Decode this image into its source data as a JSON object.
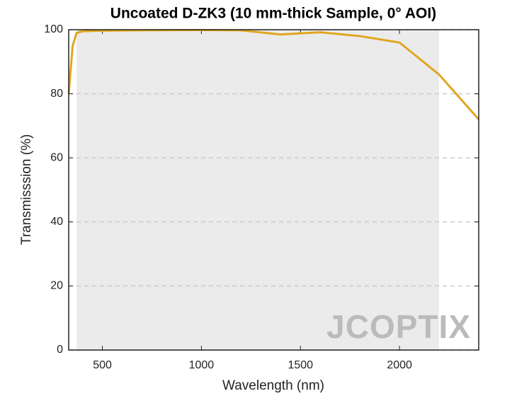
{
  "chart_data": {
    "type": "line",
    "title": "Uncoated D-ZK3 (10 mm-thick Sample, 0° AOI)",
    "x_label": "Wavelength (nm)",
    "y_label": "Transmisssion (%)",
    "watermark": "JCOPTIX",
    "x": [
      330,
      350,
      370,
      400,
      500,
      700,
      1000,
      1200,
      1400,
      1600,
      1800,
      2000,
      2200,
      2400
    ],
    "series": [
      {
        "name": "Transmission",
        "color": "#e0a61f",
        "values": [
          80,
          95,
          99,
          99.5,
          99.7,
          99.8,
          99.9,
          99.8,
          98.5,
          99.2,
          98,
          96,
          86,
          72
        ]
      }
    ],
    "shaded_range": [
      370,
      2200
    ],
    "shade_color": "#ebebeb",
    "xlim": [
      330,
      2400
    ],
    "xticks": [
      500,
      1000,
      1500,
      2000
    ],
    "ylim": [
      0,
      100
    ],
    "yticks": [
      0,
      20,
      40,
      60,
      80,
      100
    ],
    "grid": true
  }
}
